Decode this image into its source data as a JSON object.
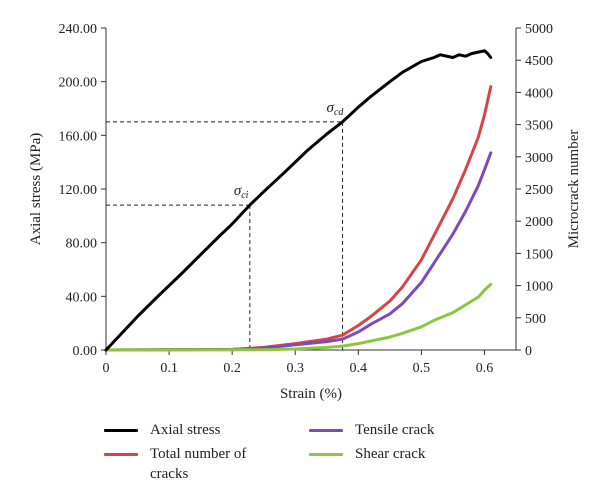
{
  "chart_data": {
    "type": "line",
    "xlabel": "Strain (%)",
    "ylabel_left": "Axial stress (MPa)",
    "ylabel_right": "Microcrack number",
    "xlim": [
      0,
      0.65
    ],
    "ylim_left": [
      0,
      240
    ],
    "ylim_right": [
      0,
      5000
    ],
    "x_ticks": [
      "0",
      "0.1",
      "0.2",
      "0.3",
      "0.4",
      "0.5",
      "0.6"
    ],
    "y_left_ticks": [
      "0.00",
      "40.00",
      "80.00",
      "120.00",
      "160.00",
      "200.00",
      "240.00"
    ],
    "y_right_ticks": [
      "0",
      "500",
      "1000",
      "1500",
      "2000",
      "2500",
      "3000",
      "3500",
      "4000",
      "4500",
      "5000"
    ],
    "grid": false,
    "legend_position": "bottom",
    "annotations": [
      {
        "label": "σ",
        "sub": "ci",
        "x": 0.228,
        "y": 108
      },
      {
        "label": "σ",
        "sub": "cd",
        "x": 0.375,
        "y": 170
      }
    ],
    "series": [
      {
        "name": "Axial stress",
        "axis": "left",
        "color": "#000000",
        "x": [
          0,
          0.02,
          0.05,
          0.08,
          0.1,
          0.12,
          0.15,
          0.18,
          0.2,
          0.228,
          0.25,
          0.28,
          0.3,
          0.32,
          0.35,
          0.375,
          0.4,
          0.42,
          0.45,
          0.47,
          0.5,
          0.52,
          0.53,
          0.55,
          0.56,
          0.57,
          0.58,
          0.59,
          0.6,
          0.605,
          0.61
        ],
        "y": [
          0,
          10,
          25,
          39,
          48,
          57,
          71,
          85,
          94,
          108,
          118,
          131,
          140,
          149,
          161,
          170,
          181,
          189,
          200,
          207,
          215,
          218,
          220,
          218,
          220,
          219,
          221,
          222,
          223,
          221,
          218
        ]
      },
      {
        "name": "Total number of cracks",
        "axis": "right",
        "color": "#d64545",
        "x": [
          0,
          0.2,
          0.25,
          0.3,
          0.35,
          0.375,
          0.4,
          0.42,
          0.45,
          0.47,
          0.5,
          0.52,
          0.55,
          0.57,
          0.59,
          0.6,
          0.61
        ],
        "y": [
          0,
          10,
          40,
          100,
          170,
          230,
          380,
          520,
          760,
          980,
          1400,
          1780,
          2350,
          2800,
          3300,
          3650,
          4090
        ]
      },
      {
        "name": "Tensile crack",
        "axis": "right",
        "color": "#7b4bb8",
        "x": [
          0,
          0.2,
          0.25,
          0.3,
          0.35,
          0.375,
          0.4,
          0.42,
          0.45,
          0.47,
          0.5,
          0.52,
          0.55,
          0.57,
          0.59,
          0.6,
          0.61
        ],
        "y": [
          0,
          8,
          30,
          80,
          130,
          170,
          280,
          400,
          560,
          720,
          1050,
          1350,
          1800,
          2150,
          2550,
          2800,
          3060
        ]
      },
      {
        "name": "Shear crack",
        "axis": "right",
        "color": "#8cc63e",
        "x": [
          0,
          0.25,
          0.3,
          0.35,
          0.375,
          0.4,
          0.42,
          0.45,
          0.47,
          0.5,
          0.52,
          0.55,
          0.57,
          0.59,
          0.6,
          0.61
        ],
        "y": [
          0,
          3,
          15,
          40,
          60,
          100,
          140,
          200,
          260,
          360,
          460,
          580,
          700,
          820,
          930,
          1020
        ]
      }
    ]
  },
  "legend": [
    {
      "label": "Axial stress",
      "color": "#000000"
    },
    {
      "label": "Tensile crack",
      "color": "#7b4bb8"
    },
    {
      "label": "Total number of cracks",
      "color": "#d64545"
    },
    {
      "label": "Shear crack",
      "color": "#8cc63e"
    }
  ]
}
